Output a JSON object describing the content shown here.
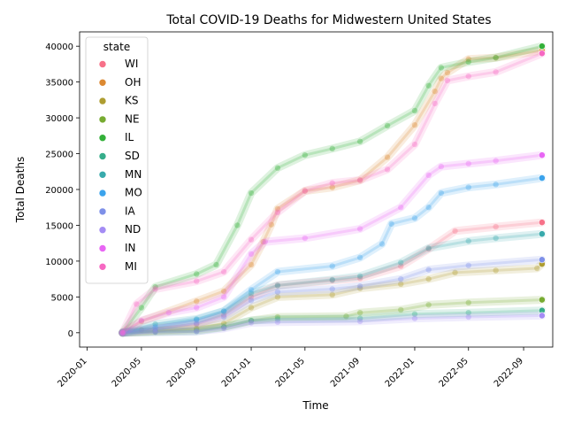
{
  "chart_data": {
    "type": "scatter",
    "title": "Total COVID-19 Deaths for Midwestern United States",
    "xlabel": "Time",
    "ylabel": "Total Deaths",
    "xlim": [
      "2019-12-15",
      "2022-11-05"
    ],
    "ylim": [
      -2000,
      42000
    ],
    "x_ticks": [
      "2020-01",
      "2020-05",
      "2020-09",
      "2021-01",
      "2021-05",
      "2021-09",
      "2022-01",
      "2022-05",
      "2022-09"
    ],
    "y_ticks": [
      0,
      5000,
      10000,
      15000,
      20000,
      25000,
      30000,
      35000,
      40000
    ],
    "grid": false,
    "legend": {
      "title": "state",
      "placement": "top-left"
    },
    "series": [
      {
        "name": "WI",
        "color": "#f77189",
        "points": [
          [
            "2020-03-20",
            0
          ],
          [
            "2020-05-01",
            400
          ],
          [
            "2020-09-01",
            1200
          ],
          [
            "2020-11-01",
            2500
          ],
          [
            "2021-01-01",
            5000
          ],
          [
            "2021-03-01",
            6600
          ],
          [
            "2021-07-01",
            7300
          ],
          [
            "2021-09-01",
            7600
          ],
          [
            "2021-12-01",
            9300
          ],
          [
            "2022-02-01",
            11700
          ],
          [
            "2022-04-01",
            14200
          ],
          [
            "2022-07-01",
            14800
          ],
          [
            "2022-10-12",
            15400
          ]
        ]
      },
      {
        "name": "OH",
        "color": "#dc8932",
        "points": [
          [
            "2020-03-20",
            0
          ],
          [
            "2020-05-01",
            1600
          ],
          [
            "2020-09-01",
            4400
          ],
          [
            "2020-11-01",
            5800
          ],
          [
            "2021-01-01",
            9500
          ],
          [
            "2021-01-28",
            12700
          ],
          [
            "2021-02-15",
            15100
          ],
          [
            "2021-03-01",
            17300
          ],
          [
            "2021-05-01",
            19800
          ],
          [
            "2021-07-01",
            20300
          ],
          [
            "2021-09-01",
            21300
          ],
          [
            "2021-11-01",
            24500
          ],
          [
            "2022-01-01",
            29000
          ],
          [
            "2022-02-15",
            33700
          ],
          [
            "2022-03-01",
            35500
          ],
          [
            "2022-03-15",
            36300
          ],
          [
            "2022-05-01",
            38200
          ],
          [
            "2022-07-01",
            38400
          ],
          [
            "2022-10-12",
            39400
          ]
        ]
      },
      {
        "name": "KS",
        "color": "#ae9d31",
        "points": [
          [
            "2020-03-20",
            0
          ],
          [
            "2020-06-01",
            300
          ],
          [
            "2020-09-01",
            600
          ],
          [
            "2020-11-01",
            1300
          ],
          [
            "2021-01-01",
            3500
          ],
          [
            "2021-03-01",
            5000
          ],
          [
            "2021-07-01",
            5300
          ],
          [
            "2021-09-01",
            6200
          ],
          [
            "2021-12-01",
            6800
          ],
          [
            "2022-02-01",
            7500
          ],
          [
            "2022-04-01",
            8400
          ],
          [
            "2022-07-01",
            8700
          ],
          [
            "2022-10-01",
            9000
          ],
          [
            "2022-10-12",
            9600
          ]
        ]
      },
      {
        "name": "NE",
        "color": "#77ab31",
        "points": [
          [
            "2020-03-20",
            0
          ],
          [
            "2020-06-01",
            200
          ],
          [
            "2020-09-01",
            400
          ],
          [
            "2020-11-01",
            800
          ],
          [
            "2021-01-01",
            1700
          ],
          [
            "2021-03-01",
            2200
          ],
          [
            "2021-08-01",
            2300
          ],
          [
            "2021-09-01",
            2800
          ],
          [
            "2021-12-01",
            3200
          ],
          [
            "2022-02-01",
            3900
          ],
          [
            "2022-05-01",
            4200
          ],
          [
            "2022-10-12",
            4600
          ]
        ]
      },
      {
        "name": "IL",
        "color": "#33b039",
        "points": [
          [
            "2020-03-20",
            0
          ],
          [
            "2020-05-01",
            3500
          ],
          [
            "2020-06-01",
            6400
          ],
          [
            "2020-09-01",
            8200
          ],
          [
            "2020-10-15",
            9500
          ],
          [
            "2020-12-01",
            15000
          ],
          [
            "2021-01-01",
            19500
          ],
          [
            "2021-03-01",
            23000
          ],
          [
            "2021-05-01",
            24800
          ],
          [
            "2021-07-01",
            25700
          ],
          [
            "2021-09-01",
            26700
          ],
          [
            "2021-11-01",
            28900
          ],
          [
            "2022-01-01",
            31000
          ],
          [
            "2022-02-01",
            34500
          ],
          [
            "2022-03-01",
            37000
          ],
          [
            "2022-05-01",
            37800
          ],
          [
            "2022-07-01",
            38400
          ],
          [
            "2022-10-12",
            40000
          ]
        ]
      },
      {
        "name": "SD",
        "color": "#36ad8a",
        "points": [
          [
            "2020-03-20",
            0
          ],
          [
            "2020-06-01",
            100
          ],
          [
            "2020-09-01",
            200
          ],
          [
            "2020-11-01",
            800
          ],
          [
            "2021-01-01",
            1700
          ],
          [
            "2021-03-01",
            1900
          ],
          [
            "2021-09-01",
            2000
          ],
          [
            "2022-01-01",
            2600
          ],
          [
            "2022-05-01",
            2800
          ],
          [
            "2022-10-12",
            3100
          ]
        ]
      },
      {
        "name": "MN",
        "color": "#38aaac",
        "points": [
          [
            "2020-03-20",
            0
          ],
          [
            "2020-06-01",
            1200
          ],
          [
            "2020-09-01",
            1900
          ],
          [
            "2020-11-01",
            3000
          ],
          [
            "2021-01-01",
            5500
          ],
          [
            "2021-03-01",
            6600
          ],
          [
            "2021-07-01",
            7400
          ],
          [
            "2021-09-01",
            7900
          ],
          [
            "2021-12-01",
            9800
          ],
          [
            "2022-02-01",
            11800
          ],
          [
            "2022-05-01",
            12800
          ],
          [
            "2022-07-01",
            13200
          ],
          [
            "2022-10-12",
            13800
          ]
        ]
      },
      {
        "name": "MO",
        "color": "#3ba3ec",
        "points": [
          [
            "2020-03-20",
            0
          ],
          [
            "2020-06-01",
            800
          ],
          [
            "2020-09-01",
            1800
          ],
          [
            "2020-11-01",
            3000
          ],
          [
            "2021-01-01",
            6000
          ],
          [
            "2021-03-01",
            8500
          ],
          [
            "2021-07-01",
            9300
          ],
          [
            "2021-09-01",
            10500
          ],
          [
            "2021-10-20",
            12400
          ],
          [
            "2021-11-10",
            15200
          ],
          [
            "2022-01-01",
            16000
          ],
          [
            "2022-02-01",
            17500
          ],
          [
            "2022-03-01",
            19500
          ],
          [
            "2022-05-01",
            20300
          ],
          [
            "2022-07-01",
            20700
          ],
          [
            "2022-10-12",
            21600
          ]
        ]
      },
      {
        "name": "IA",
        "color": "#7e90e8",
        "points": [
          [
            "2020-03-20",
            0
          ],
          [
            "2020-06-01",
            500
          ],
          [
            "2020-09-01",
            1300
          ],
          [
            "2020-11-01",
            2200
          ],
          [
            "2021-01-01",
            4500
          ],
          [
            "2021-03-01",
            5700
          ],
          [
            "2021-07-01",
            6100
          ],
          [
            "2021-09-01",
            6500
          ],
          [
            "2021-12-01",
            7500
          ],
          [
            "2022-02-01",
            8800
          ],
          [
            "2022-05-01",
            9400
          ],
          [
            "2022-10-12",
            10200
          ]
        ]
      },
      {
        "name": "ND",
        "color": "#a48cf4",
        "points": [
          [
            "2020-03-20",
            0
          ],
          [
            "2020-06-01",
            100
          ],
          [
            "2020-09-01",
            200
          ],
          [
            "2020-11-01",
            600
          ],
          [
            "2021-01-01",
            1400
          ],
          [
            "2021-03-01",
            1500
          ],
          [
            "2021-09-01",
            1600
          ],
          [
            "2022-01-01",
            2000
          ],
          [
            "2022-05-01",
            2200
          ],
          [
            "2022-10-12",
            2400
          ]
        ]
      },
      {
        "name": "IN",
        "color": "#e866f4",
        "points": [
          [
            "2020-03-20",
            0
          ],
          [
            "2020-05-01",
            1700
          ],
          [
            "2020-07-01",
            2800
          ],
          [
            "2020-09-01",
            3500
          ],
          [
            "2020-11-01",
            5000
          ],
          [
            "2021-01-01",
            11000
          ],
          [
            "2021-02-01",
            12700
          ],
          [
            "2021-05-01",
            13200
          ],
          [
            "2021-09-01",
            14500
          ],
          [
            "2021-12-01",
            17500
          ],
          [
            "2022-02-01",
            22000
          ],
          [
            "2022-03-01",
            23200
          ],
          [
            "2022-05-01",
            23600
          ],
          [
            "2022-07-01",
            24000
          ],
          [
            "2022-10-12",
            24800
          ]
        ]
      },
      {
        "name": "MI",
        "color": "#f668c2",
        "points": [
          [
            "2020-03-20",
            0
          ],
          [
            "2020-04-20",
            4000
          ],
          [
            "2020-06-01",
            6100
          ],
          [
            "2020-09-01",
            7200
          ],
          [
            "2020-11-01",
            8500
          ],
          [
            "2021-01-01",
            13000
          ],
          [
            "2021-03-01",
            16800
          ],
          [
            "2021-05-01",
            19800
          ],
          [
            "2021-07-01",
            20900
          ],
          [
            "2021-09-01",
            21300
          ],
          [
            "2021-11-01",
            22800
          ],
          [
            "2022-01-01",
            26300
          ],
          [
            "2022-02-15",
            32000
          ],
          [
            "2022-03-15",
            35200
          ],
          [
            "2022-05-01",
            35800
          ],
          [
            "2022-07-01",
            36400
          ],
          [
            "2022-10-12",
            39000
          ]
        ]
      }
    ]
  }
}
